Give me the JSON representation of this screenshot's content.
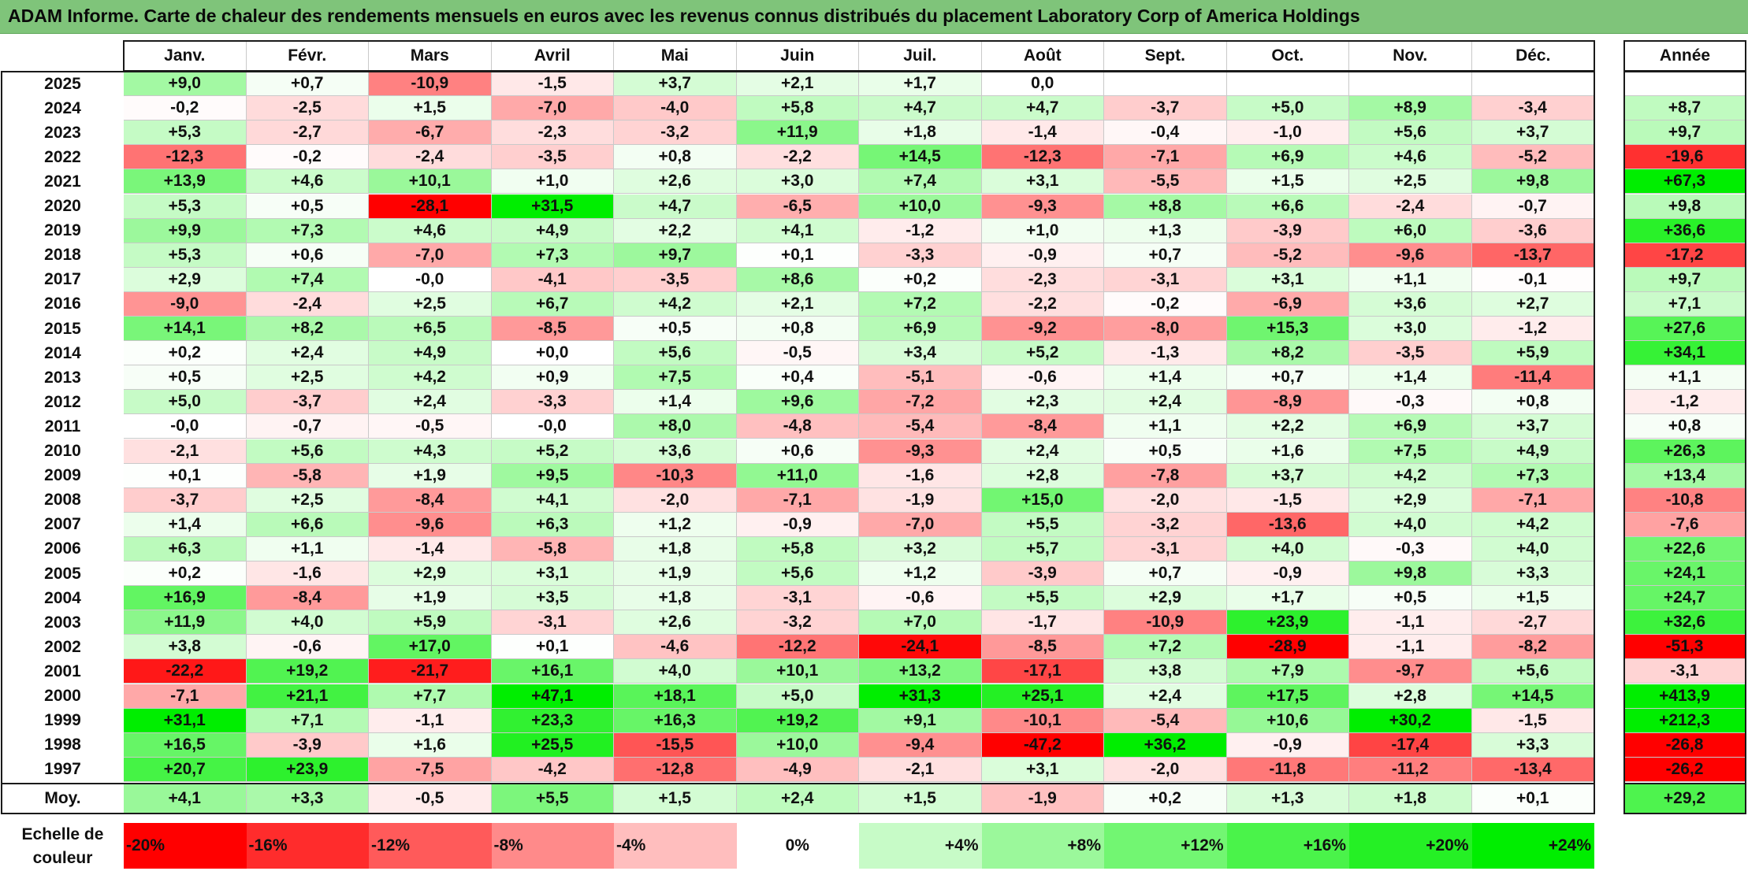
{
  "title": "ADAM Informe. Carte de chaleur des rendements mensuels en euros avec les revenus connus distribués du placement Laboratory Corp of America Holdings",
  "chart_data": {
    "type": "heatmap",
    "columns": [
      "Janv.",
      "Févr.",
      "Mars",
      "Avril",
      "Mai",
      "Juin",
      "Juil.",
      "Août",
      "Sept.",
      "Oct.",
      "Nov.",
      "Déc."
    ],
    "year_column": "Année",
    "rows": [
      {
        "year": "2025",
        "values": [
          "+9,0",
          "+0,7",
          "-10,9",
          "-1,5",
          "+3,7",
          "+2,1",
          "+1,7",
          "0,0",
          "",
          "",
          "",
          ""
        ],
        "annual": ""
      },
      {
        "year": "2024",
        "values": [
          "-0,2",
          "-2,5",
          "+1,5",
          "-7,0",
          "-4,0",
          "+5,8",
          "+4,7",
          "+4,7",
          "-3,7",
          "+5,0",
          "+8,9",
          "-3,4"
        ],
        "annual": "+8,7"
      },
      {
        "year": "2023",
        "values": [
          "+5,3",
          "-2,7",
          "-6,7",
          "-2,3",
          "-3,2",
          "+11,9",
          "+1,8",
          "-1,4",
          "-0,4",
          "-1,0",
          "+5,6",
          "+3,7"
        ],
        "annual": "+9,7"
      },
      {
        "year": "2022",
        "values": [
          "-12,3",
          "-0,2",
          "-2,4",
          "-3,5",
          "+0,8",
          "-2,2",
          "+14,5",
          "-12,3",
          "-7,1",
          "+6,9",
          "+4,6",
          "-5,2"
        ],
        "annual": "-19,6"
      },
      {
        "year": "2021",
        "values": [
          "+13,9",
          "+4,6",
          "+10,1",
          "+1,0",
          "+2,6",
          "+3,0",
          "+7,4",
          "+3,1",
          "-5,5",
          "+1,5",
          "+2,5",
          "+9,8"
        ],
        "annual": "+67,3"
      },
      {
        "year": "2020",
        "values": [
          "+5,3",
          "+0,5",
          "-28,1",
          "+31,5",
          "+4,7",
          "-6,5",
          "+10,0",
          "-9,3",
          "+8,8",
          "+6,6",
          "-2,4",
          "-0,7"
        ],
        "annual": "+9,8"
      },
      {
        "year": "2019",
        "values": [
          "+9,9",
          "+7,3",
          "+4,6",
          "+4,9",
          "+2,2",
          "+4,1",
          "-1,2",
          "+1,0",
          "+1,3",
          "-3,9",
          "+6,0",
          "-3,6"
        ],
        "annual": "+36,6"
      },
      {
        "year": "2018",
        "values": [
          "+5,3",
          "+0,6",
          "-7,0",
          "+7,3",
          "+9,7",
          "+0,1",
          "-3,3",
          "-0,9",
          "+0,7",
          "-5,2",
          "-9,6",
          "-13,7"
        ],
        "annual": "-17,2"
      },
      {
        "year": "2017",
        "values": [
          "+2,9",
          "+7,4",
          "-0,0",
          "-4,1",
          "-3,5",
          "+8,6",
          "+0,2",
          "-2,3",
          "-3,1",
          "+3,1",
          "+1,1",
          "-0,1"
        ],
        "annual": "+9,7"
      },
      {
        "year": "2016",
        "values": [
          "-9,0",
          "-2,4",
          "+2,5",
          "+6,7",
          "+4,2",
          "+2,1",
          "+7,2",
          "-2,2",
          "-0,2",
          "-6,9",
          "+3,6",
          "+2,7"
        ],
        "annual": "+7,1"
      },
      {
        "year": "2015",
        "values": [
          "+14,1",
          "+8,2",
          "+6,5",
          "-8,5",
          "+0,5",
          "+0,8",
          "+6,9",
          "-9,2",
          "-8,0",
          "+15,3",
          "+3,0",
          "-1,2"
        ],
        "annual": "+27,6"
      },
      {
        "year": "2014",
        "values": [
          "+0,2",
          "+2,4",
          "+4,9",
          "+0,0",
          "+5,6",
          "-0,5",
          "+3,4",
          "+5,2",
          "-1,3",
          "+8,2",
          "-3,5",
          "+5,9"
        ],
        "annual": "+34,1"
      },
      {
        "year": "2013",
        "values": [
          "+0,5",
          "+2,5",
          "+4,2",
          "+0,9",
          "+7,5",
          "+0,4",
          "-5,1",
          "-0,6",
          "+1,4",
          "+0,7",
          "+1,4",
          "-11,4"
        ],
        "annual": "+1,1"
      },
      {
        "year": "2012",
        "values": [
          "+5,0",
          "-3,7",
          "+2,4",
          "-3,3",
          "+1,4",
          "+9,6",
          "-7,2",
          "+2,3",
          "+2,4",
          "-8,9",
          "-0,3",
          "+0,8"
        ],
        "annual": "-1,2"
      },
      {
        "year": "2011",
        "values": [
          "-0,0",
          "-0,7",
          "-0,5",
          "-0,0",
          "+8,0",
          "-4,8",
          "-5,4",
          "-8,4",
          "+1,1",
          "+2,2",
          "+6,9",
          "+3,7"
        ],
        "annual": "+0,8"
      },
      {
        "year": "2010",
        "values": [
          "-2,1",
          "+5,6",
          "+4,3",
          "+5,2",
          "+3,6",
          "+0,6",
          "-9,3",
          "+2,4",
          "+0,5",
          "+1,6",
          "+7,5",
          "+4,9"
        ],
        "annual": "+26,3"
      },
      {
        "year": "2009",
        "values": [
          "+0,1",
          "-5,8",
          "+1,9",
          "+9,5",
          "-10,3",
          "+11,0",
          "-1,6",
          "+2,8",
          "-7,8",
          "+3,7",
          "+4,2",
          "+7,3"
        ],
        "annual": "+13,4"
      },
      {
        "year": "2008",
        "values": [
          "-3,7",
          "+2,5",
          "-8,4",
          "+4,1",
          "-2,0",
          "-7,1",
          "-1,9",
          "+15,0",
          "-2,0",
          "-1,5",
          "+2,9",
          "-7,1"
        ],
        "annual": "-10,8"
      },
      {
        "year": "2007",
        "values": [
          "+1,4",
          "+6,6",
          "-9,6",
          "+6,3",
          "+1,2",
          "-0,9",
          "-7,0",
          "+5,5",
          "-3,2",
          "-13,6",
          "+4,0",
          "+4,2"
        ],
        "annual": "-7,6"
      },
      {
        "year": "2006",
        "values": [
          "+6,3",
          "+1,1",
          "-1,4",
          "-5,8",
          "+1,8",
          "+5,8",
          "+3,2",
          "+5,7",
          "-3,1",
          "+4,0",
          "-0,3",
          "+4,0"
        ],
        "annual": "+22,6"
      },
      {
        "year": "2005",
        "values": [
          "+0,2",
          "-1,6",
          "+2,9",
          "+3,1",
          "+1,9",
          "+5,6",
          "+1,2",
          "-3,9",
          "+0,7",
          "-0,9",
          "+9,8",
          "+3,3"
        ],
        "annual": "+24,1"
      },
      {
        "year": "2004",
        "values": [
          "+16,9",
          "-8,4",
          "+1,9",
          "+3,5",
          "+1,8",
          "-3,1",
          "-0,6",
          "+5,5",
          "+2,9",
          "+1,7",
          "+0,5",
          "+1,5"
        ],
        "annual": "+24,7"
      },
      {
        "year": "2003",
        "values": [
          "+11,9",
          "+4,0",
          "+5,9",
          "-3,1",
          "+2,6",
          "-3,2",
          "+7,0",
          "-1,7",
          "-10,9",
          "+23,9",
          "-1,1",
          "-2,7"
        ],
        "annual": "+32,6"
      },
      {
        "year": "2002",
        "values": [
          "+3,8",
          "-0,6",
          "+17,0",
          "+0,1",
          "-4,6",
          "-12,2",
          "-24,1",
          "-8,5",
          "+7,2",
          "-28,9",
          "-1,1",
          "-8,2"
        ],
        "annual": "-51,3"
      },
      {
        "year": "2001",
        "values": [
          "-22,2",
          "+19,2",
          "-21,7",
          "+16,1",
          "+4,0",
          "+10,1",
          "+13,2",
          "-17,1",
          "+3,8",
          "+7,9",
          "-9,7",
          "+5,6"
        ],
        "annual": "-3,1"
      },
      {
        "year": "2000",
        "values": [
          "-7,1",
          "+21,1",
          "+7,7",
          "+47,1",
          "+18,1",
          "+5,0",
          "+31,3",
          "+25,1",
          "+2,4",
          "+17,5",
          "+2,8",
          "+14,5"
        ],
        "annual": "+413,9"
      },
      {
        "year": "1999",
        "values": [
          "+31,1",
          "+7,1",
          "-1,1",
          "+23,3",
          "+16,3",
          "+19,2",
          "+9,1",
          "-10,1",
          "-5,4",
          "+10,6",
          "+30,2",
          "-1,5"
        ],
        "annual": "+212,3"
      },
      {
        "year": "1998",
        "values": [
          "+16,5",
          "-3,9",
          "+1,6",
          "+25,5",
          "-15,5",
          "+10,0",
          "-9,4",
          "-47,2",
          "+36,2",
          "-0,9",
          "-17,4",
          "+3,3"
        ],
        "annual": "-26,8"
      },
      {
        "year": "1997",
        "values": [
          "+20,7",
          "+23,9",
          "-7,5",
          "-4,2",
          "-12,8",
          "-4,9",
          "-2,1",
          "+3,1",
          "-2,0",
          "-11,8",
          "-11,2",
          "-13,4"
        ],
        "annual": "-26,2"
      }
    ],
    "average": {
      "label": "Moy.",
      "values": [
        "+4,1",
        "+3,3",
        "-0,5",
        "+5,5",
        "+1,5",
        "+2,4",
        "+1,5",
        "-1,9",
        "+0,2",
        "+1,3",
        "+1,8",
        "+0,1"
      ],
      "annual": "+29,2"
    },
    "scale": {
      "label_line1": "Echelle de",
      "label_line2": "couleur",
      "items": [
        "-20%",
        "-16%",
        "-12%",
        "-8%",
        "-4%",
        "0%",
        "+4%",
        "+8%",
        "+12%",
        "+16%",
        "+20%",
        "+24%"
      ],
      "values": [
        -20,
        -16,
        -12,
        -8,
        -4,
        0,
        4,
        8,
        12,
        16,
        20,
        24
      ]
    },
    "colors": {
      "negative": "#ff0000",
      "neutral": "#ffffff",
      "positive": "#00ee00"
    }
  }
}
